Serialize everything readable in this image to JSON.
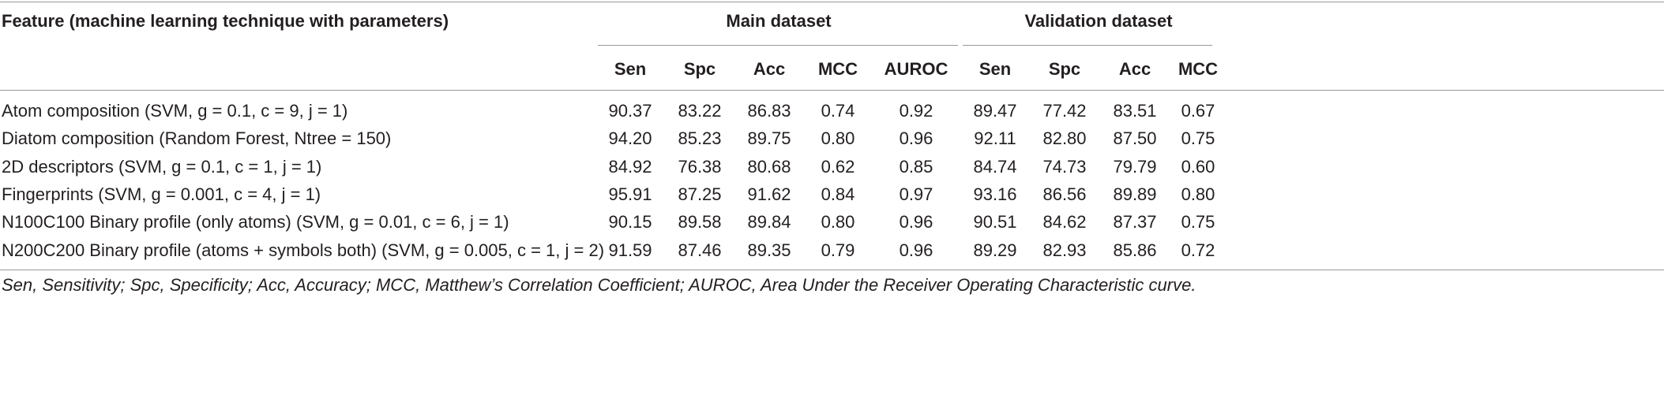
{
  "table": {
    "header": {
      "feature": "Feature (machine learning technique with parameters)",
      "groups": [
        "Main dataset",
        "Validation dataset"
      ],
      "columns": [
        "Sen",
        "Spc",
        "Acc",
        "MCC",
        "AUROC",
        "Sen",
        "Spc",
        "Acc",
        "MCC"
      ]
    },
    "rows": [
      {
        "feature": "Atom composition (SVM, g = 0.1, c = 9, j = 1)",
        "values": [
          "90.37",
          "83.22",
          "86.83",
          "0.74",
          "0.92",
          "89.47",
          "77.42",
          "83.51",
          "0.67"
        ]
      },
      {
        "feature": "Diatom composition (Random Forest, Ntree = 150)",
        "values": [
          "94.20",
          "85.23",
          "89.75",
          "0.80",
          "0.96",
          "92.11",
          "82.80",
          "87.50",
          "0.75"
        ]
      },
      {
        "feature": "2D descriptors (SVM, g = 0.1, c = 1, j = 1)",
        "values": [
          "84.92",
          "76.38",
          "80.68",
          "0.62",
          "0.85",
          "84.74",
          "74.73",
          "79.79",
          "0.60"
        ]
      },
      {
        "feature": "Fingerprints (SVM, g = 0.001, c = 4, j = 1)",
        "values": [
          "95.91",
          "87.25",
          "91.62",
          "0.84",
          "0.97",
          "93.16",
          "86.56",
          "89.89",
          "0.80"
        ]
      },
      {
        "feature": "N100C100 Binary profile (only atoms) (SVM, g = 0.01, c = 6, j = 1)",
        "values": [
          "90.15",
          "89.58",
          "89.84",
          "0.80",
          "0.96",
          "90.51",
          "84.62",
          "87.37",
          "0.75"
        ]
      },
      {
        "feature": "N200C200 Binary profile (atoms + symbols both) (SVM, g = 0.005, c = 1, j = 2)",
        "values": [
          "91.59",
          "87.46",
          "89.35",
          "0.79",
          "0.96",
          "89.29",
          "82.93",
          "85.86",
          "0.72"
        ]
      }
    ],
    "footnote": "Sen, Sensitivity; Spc, Specificity; Acc, Accuracy; MCC, Matthew’s Correlation Coefficient; AUROC, Area Under the Receiver Operating Characteristic curve."
  }
}
